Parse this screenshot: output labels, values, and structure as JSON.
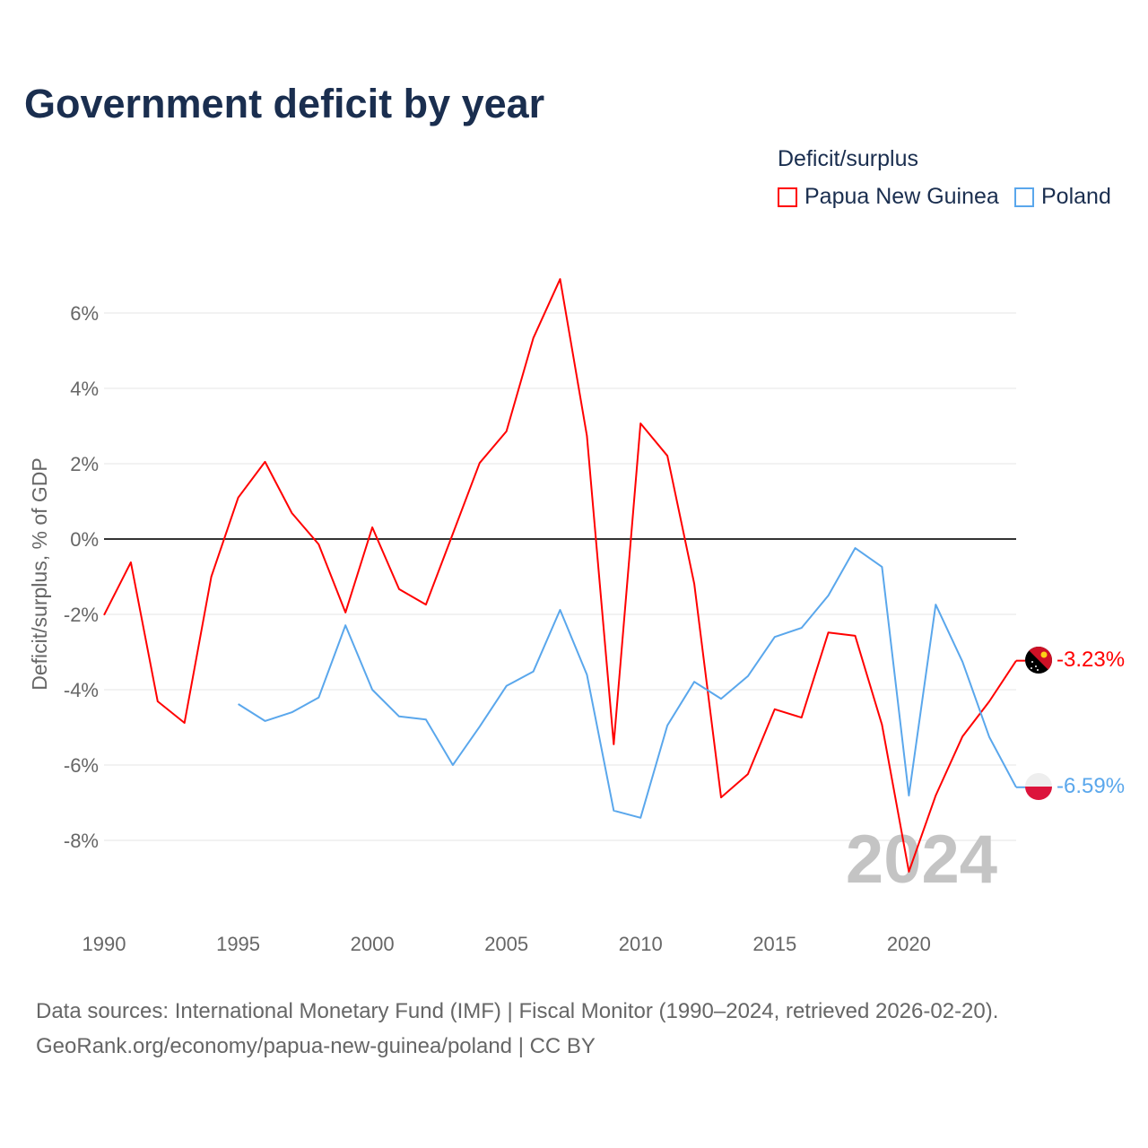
{
  "chart_data": {
    "type": "line",
    "title": "Government deficit by year",
    "ylabel": "Deficit/surplus, % of GDP",
    "xlabel": "",
    "legend_title": "Deficit/surplus",
    "legend_placement": "top-right",
    "x": [
      1990,
      1991,
      1992,
      1993,
      1994,
      1995,
      1996,
      1997,
      1998,
      1999,
      2000,
      2001,
      2002,
      2003,
      2004,
      2005,
      2006,
      2007,
      2008,
      2009,
      2010,
      2011,
      2012,
      2013,
      2014,
      2015,
      2016,
      2017,
      2018,
      2019,
      2020,
      2021,
      2022,
      2023,
      2024
    ],
    "xlim": [
      1990,
      2024
    ],
    "ylim": [
      -9.5,
      7.5
    ],
    "x_ticks": [
      1990,
      1995,
      2000,
      2005,
      2010,
      2015,
      2020
    ],
    "y_ticks": [
      -8,
      -6,
      -4,
      -2,
      0,
      2,
      4,
      6
    ],
    "y_tick_labels": [
      "-8%",
      "-6%",
      "-4%",
      "-2%",
      "0%",
      "2%",
      "4%",
      "6%"
    ],
    "grid": true,
    "year_watermark": "2024",
    "series": [
      {
        "name": "Papua New Guinea",
        "color": "#ff0000",
        "end_label": "-3.23%",
        "flag": "papua-new-guinea",
        "values": [
          -2.02,
          -0.62,
          -4.31,
          -4.88,
          -1.0,
          1.1,
          2.05,
          0.69,
          -0.14,
          -1.95,
          0.31,
          -1.33,
          -1.74,
          0.14,
          2.02,
          2.86,
          5.33,
          6.9,
          2.74,
          -5.45,
          3.07,
          2.21,
          -1.19,
          -6.86,
          -6.24,
          -4.52,
          -4.74,
          -2.48,
          -2.57,
          -4.93,
          -8.83,
          -6.81,
          -5.24,
          -4.31,
          -3.23
        ]
      },
      {
        "name": "Poland",
        "color": "#5aa7ec",
        "end_label": "-6.59%",
        "flag": "poland",
        "values": [
          null,
          null,
          null,
          null,
          null,
          -4.38,
          -4.83,
          -4.6,
          -4.21,
          -2.29,
          -4.0,
          -4.71,
          -4.79,
          -6.0,
          -4.98,
          -3.9,
          -3.52,
          -1.88,
          -3.6,
          -7.21,
          -7.4,
          -4.95,
          -3.79,
          -4.24,
          -3.64,
          -2.6,
          -2.36,
          -1.5,
          -0.24,
          -0.74,
          -6.81,
          -1.74,
          -3.26,
          -5.26,
          -6.59
        ]
      }
    ]
  },
  "footer": {
    "line1": "Data sources: International Monetary Fund (IMF) | Fiscal Monitor (1990–2024, retrieved 2026-02-20).",
    "line2": "GeoRank.org/economy/papua-new-guinea/poland | CC BY"
  }
}
